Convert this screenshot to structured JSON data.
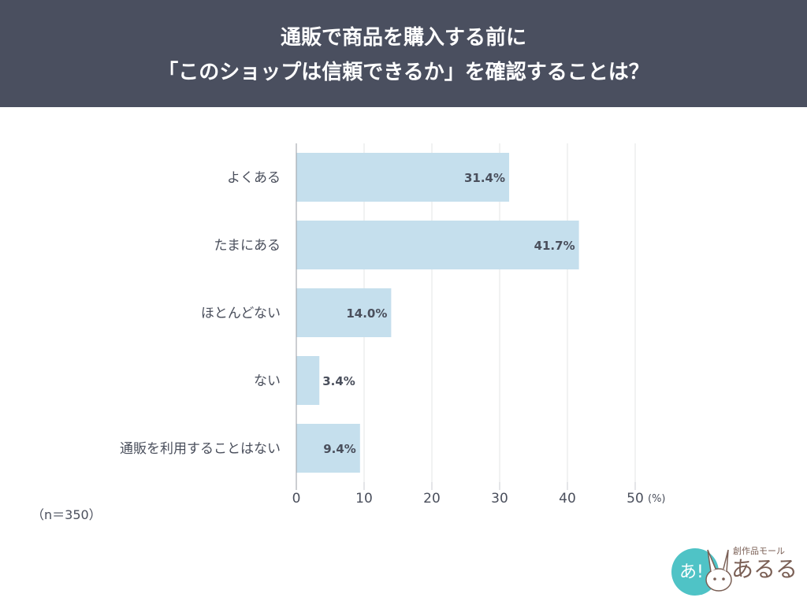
{
  "header": {
    "line1": "通販で商品を購入する前に",
    "line2": "「このショップは信頼できるか」を確認することは？"
  },
  "sample_note": "（n＝350）",
  "logo": {
    "tagline": "創作品モール",
    "name": "あるる",
    "badge": "あ!"
  },
  "chart_data": {
    "type": "bar",
    "orientation": "horizontal",
    "title": "通販で商品を購入する前に「このショップは信頼できるか」を確認することは？",
    "categories": [
      "よくある",
      "たまにある",
      "ほとんどない",
      "ない",
      "通販を利用することはない"
    ],
    "values": [
      31.4,
      41.7,
      14.0,
      3.4,
      9.4
    ],
    "data_labels": [
      "31.4%",
      "41.7%",
      "14.0%",
      "3.4%",
      "9.4%"
    ],
    "xlim": [
      0,
      50
    ],
    "xticks": [
      "0",
      "10",
      "20",
      "30",
      "40",
      "50"
    ],
    "xunit": "(%)",
    "grid": true,
    "bar_color": "#c5dfed"
  }
}
